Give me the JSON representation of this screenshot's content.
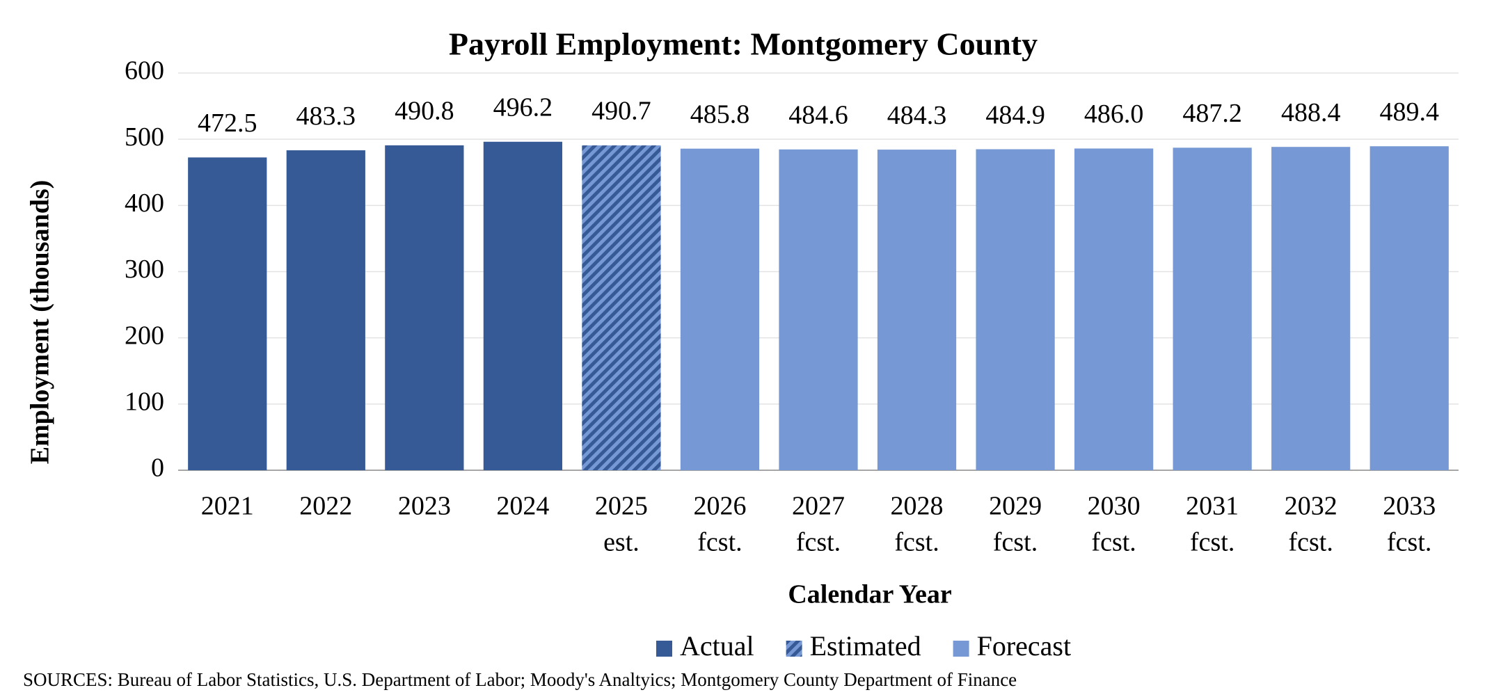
{
  "chart_data": {
    "type": "bar",
    "title": "Payroll Employment:  Montgomery County",
    "xlabel": "Calendar Year",
    "ylabel": "Employment (thousands)",
    "source": "SOURCES:  Bureau of Labor Statistics, U.S. Department of Labor; Moody's Analtyics; Montgomery County Department of Finance",
    "categories": [
      [
        "2021"
      ],
      [
        "2022"
      ],
      [
        "2023"
      ],
      [
        "2024"
      ],
      [
        "2025",
        "est."
      ],
      [
        "2026",
        "fcst."
      ],
      [
        "2027",
        "fcst."
      ],
      [
        "2028",
        "fcst."
      ],
      [
        "2029",
        "fcst."
      ],
      [
        "2030",
        "fcst."
      ],
      [
        "2031",
        "fcst."
      ],
      [
        "2032",
        "fcst."
      ],
      [
        "2033",
        "fcst."
      ]
    ],
    "series": [
      {
        "name": "Actual",
        "color": "#365a96",
        "values": [
          472.5,
          483.3,
          490.8,
          496.2,
          null,
          null,
          null,
          null,
          null,
          null,
          null,
          null,
          null
        ],
        "value_labels": [
          "472.5",
          "483.3",
          "490.8",
          "496.2",
          null,
          null,
          null,
          null,
          null,
          null,
          null,
          null,
          null
        ]
      },
      {
        "name": "Estimated",
        "color": "#365a96",
        "hatch": "#7698d4",
        "values": [
          null,
          null,
          null,
          null,
          490.7,
          null,
          null,
          null,
          null,
          null,
          null,
          null,
          null
        ],
        "value_labels": [
          null,
          null,
          null,
          null,
          "490.7",
          null,
          null,
          null,
          null,
          null,
          null,
          null,
          null
        ]
      },
      {
        "name": "Forecast",
        "color": "#7698d4",
        "values": [
          null,
          null,
          null,
          null,
          null,
          485.8,
          484.6,
          484.3,
          484.9,
          486,
          487.2,
          488.4,
          489.4
        ],
        "value_labels": [
          null,
          null,
          null,
          null,
          null,
          "485.8",
          "484.6",
          "484.3",
          "484.9",
          "486.0",
          "487.2",
          "488.4",
          "489.4"
        ]
      }
    ],
    "ylim": [
      0,
      600
    ],
    "yticks": [
      0,
      100,
      200,
      300,
      400,
      500,
      600
    ],
    "grid": true,
    "legend": "bottom"
  }
}
